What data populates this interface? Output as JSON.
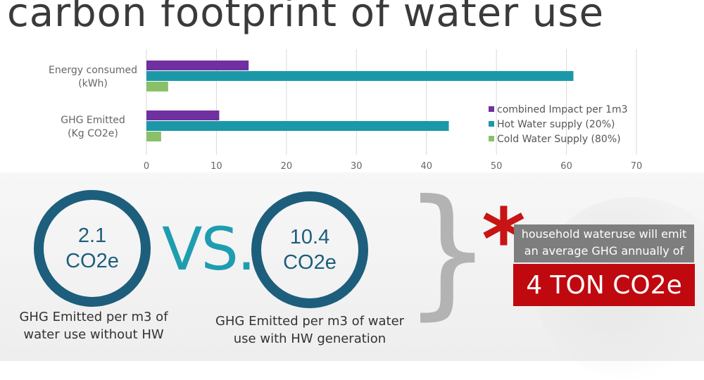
{
  "title": "carbon footprint of water use",
  "chart_data": {
    "type": "bar",
    "orientation": "horizontal",
    "categories": [
      "Energy consumed (kWh)",
      "GHG Emitted (Kg CO2e)"
    ],
    "category_lines": [
      [
        "Energy consumed",
        "(kWh)"
      ],
      [
        "GHG Emitted",
        "(Kg CO2e)"
      ]
    ],
    "series": [
      {
        "name": "combined Impact per 1m3",
        "values": [
          14.6,
          10.4
        ],
        "color": "#7030a0"
      },
      {
        "name": "Hot Water supply (20%)",
        "values": [
          61,
          43.2
        ],
        "color": "#1b98a8"
      },
      {
        "name": "Cold Water Supply (80%)",
        "values": [
          3.1,
          2.1
        ],
        "color": "#8ac168"
      }
    ],
    "xlim": [
      0,
      70
    ],
    "xticks": [
      0,
      10,
      20,
      30,
      40,
      50,
      60,
      70
    ],
    "grid": true,
    "legend_position": "right"
  },
  "comparison": {
    "left": {
      "value": "2.1",
      "unit": "CO2e",
      "caption": "GHG Emitted per m3 of water use without HW"
    },
    "vs_label": "VS.",
    "right": {
      "value": "10.4",
      "unit": "CO2e",
      "caption": "GHG Emitted per m3 of water use with HW generation"
    }
  },
  "note": {
    "asterisk": "*",
    "text_line1": "household wateruse will emit",
    "text_line2": "an average GHG annually  of",
    "total": "4 TON CO2e"
  },
  "colors": {
    "dark_teal": "#1d5e7c",
    "vs_teal": "#1f9db0",
    "accent_red": "#c0090f",
    "note_gray": "#7e7e7e"
  }
}
